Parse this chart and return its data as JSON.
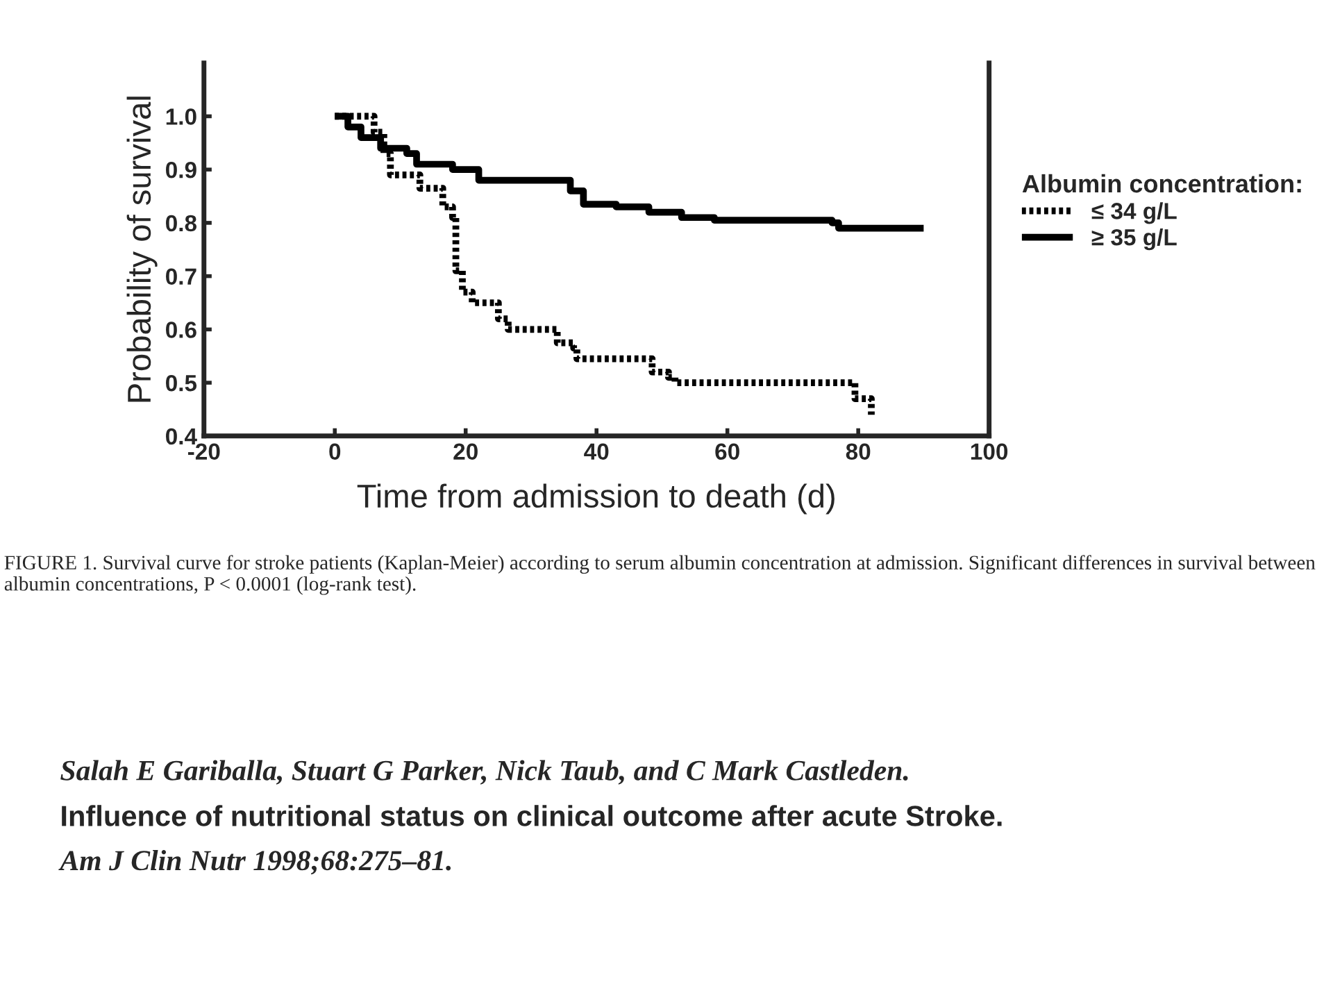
{
  "chart_data": {
    "type": "step",
    "xlabel": "Time from admission to death (d)",
    "ylabel": "Probability of survival",
    "legend_title": "Albumin concentration:",
    "xlim": [
      -20,
      100
    ],
    "xticks": [
      -20,
      0,
      20,
      40,
      60,
      80,
      100
    ],
    "ylim": [
      0.4,
      1.1
    ],
    "yticks": [
      0.4,
      0.5,
      0.6,
      0.7,
      0.8,
      0.9,
      {
        "value": 1.0,
        "label": "1.0"
      }
    ],
    "series": [
      {
        "name": "≤ 34 g/L",
        "color": "#000000",
        "line_style": "dotted",
        "x": [
          0,
          6,
          7.5,
          8.5,
          13,
          16.5,
          18,
          18.5,
          19.5,
          21,
          25,
          26.5,
          34,
          36.5,
          37,
          48.5,
          51,
          52,
          79.5,
          82
        ],
        "values": [
          1.0,
          0.97,
          0.93,
          0.89,
          0.865,
          0.83,
          0.81,
          0.71,
          0.67,
          0.65,
          0.62,
          0.6,
          0.575,
          0.565,
          0.545,
          0.52,
          0.51,
          0.5,
          0.47,
          0.44
        ]
      },
      {
        "name": "≥ 35 g/L",
        "color": "#000000",
        "line_style": "solid",
        "x": [
          0,
          2,
          4,
          7,
          11,
          12.5,
          18,
          22,
          36,
          38,
          43,
          48,
          53,
          58,
          76,
          77,
          90
        ],
        "values": [
          1.0,
          0.98,
          0.96,
          0.94,
          0.93,
          0.91,
          0.9,
          0.88,
          0.86,
          0.835,
          0.83,
          0.82,
          0.81,
          0.805,
          0.8,
          0.79,
          0.79
        ]
      }
    ],
    "legend": "right",
    "grid": false,
    "annotations": [
      "FIGURE 1. Survival curve for stroke patients (Kaplan-Meier) according to serum albumin concentration at admission. Significant differences in survival between albumin concentrations, P < 0.0001 (log-rank test).",
      "Salah E Gariballa, Stuart G Parker, Nick Taub, and C Mark Castleden.",
      "Influence of nutritional status on clinical outcome after acute Stroke.",
      "Am J Clin Nutr 1998;68:275–81."
    ]
  }
}
